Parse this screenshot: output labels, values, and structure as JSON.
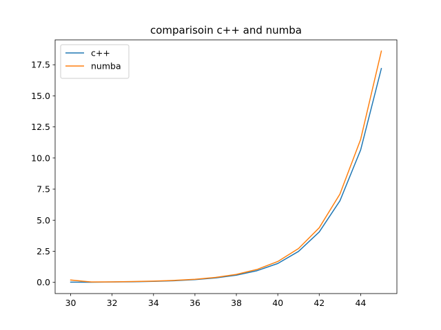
{
  "chart_data": {
    "type": "line",
    "title": "comparisoin c++ and numba",
    "xlabel": "",
    "ylabel": "",
    "xlim": [
      29.25,
      45.75
    ],
    "ylim": [
      -0.9,
      19.5
    ],
    "xticks": [
      30,
      32,
      34,
      36,
      38,
      40,
      42,
      44
    ],
    "xtick_labels": [
      "30",
      "32",
      "34",
      "36",
      "38",
      "40",
      "42",
      "44"
    ],
    "yticks": [
      0.0,
      2.5,
      5.0,
      7.5,
      10.0,
      12.5,
      15.0,
      17.5
    ],
    "ytick_labels": [
      "0.0",
      "2.5",
      "5.0",
      "7.5",
      "10.0",
      "12.5",
      "15.0",
      "17.5"
    ],
    "grid": false,
    "legend_position": "upper-left",
    "x": [
      30,
      31,
      32,
      33,
      34,
      35,
      36,
      37,
      38,
      39,
      40,
      41,
      42,
      43,
      44,
      45
    ],
    "series": [
      {
        "name": "c++",
        "color": "#1f77b4",
        "values": [
          0.02,
          0.01,
          0.03,
          0.05,
          0.08,
          0.13,
          0.22,
          0.36,
          0.58,
          0.94,
          1.52,
          2.49,
          4.05,
          6.56,
          10.65,
          17.2
        ]
      },
      {
        "name": "numba",
        "color": "#ff7f0e",
        "values": [
          0.19,
          0.03,
          0.04,
          0.07,
          0.1,
          0.16,
          0.25,
          0.4,
          0.64,
          1.04,
          1.68,
          2.72,
          4.39,
          7.1,
          11.5,
          18.6
        ]
      }
    ]
  }
}
